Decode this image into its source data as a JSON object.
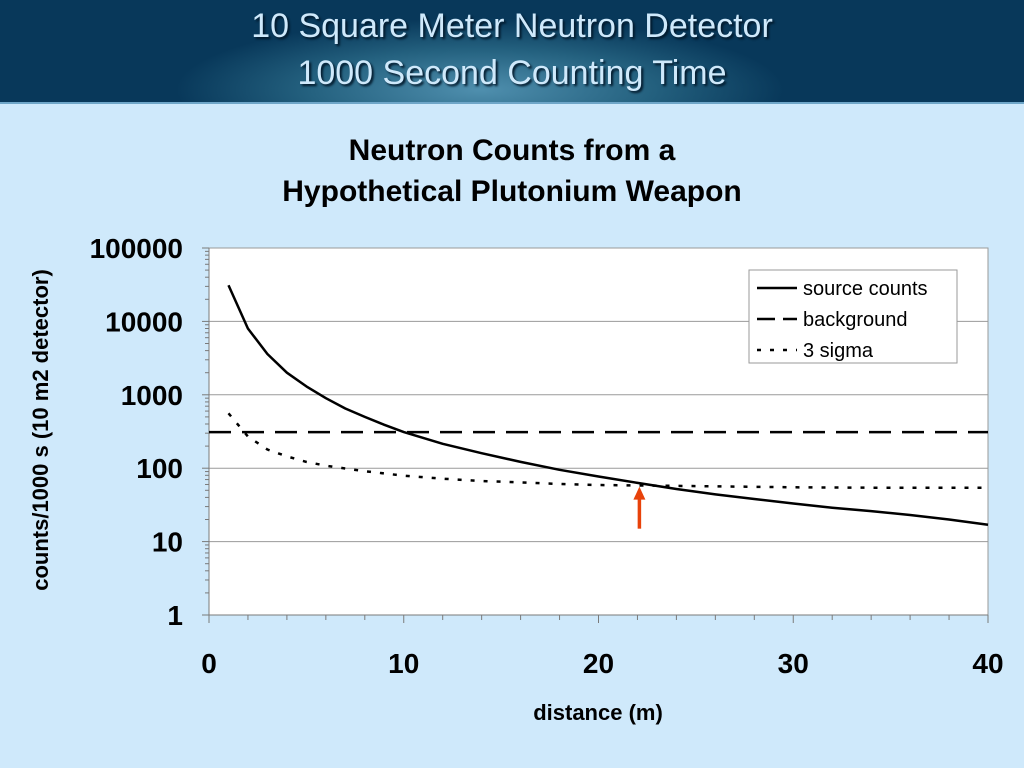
{
  "slide": {
    "title_line1": "10 Square Meter Neutron Detector",
    "title_line2": "1000 Second Counting Time"
  },
  "colors": {
    "banner": "#08385a",
    "slide_background": "#cfe9fb",
    "title_text": "#cfe9fb",
    "plot_background": "#ffffff",
    "series_line": "#000000",
    "arrow": "#e8420a"
  },
  "chart_data": {
    "type": "line",
    "title_line1": "Neutron Counts from a",
    "title_line2": "Hypothetical Plutonium Weapon",
    "xlabel": "distance (m)",
    "ylabel": "counts/1000 s (10 m2 detector)",
    "xlim": [
      0,
      40
    ],
    "ylim": [
      1,
      100000
    ],
    "y_scale": "log",
    "x_ticks": [
      "0",
      "10",
      "20",
      "30",
      "40"
    ],
    "y_ticks": [
      "1",
      "10",
      "100",
      "1000",
      "10000",
      "100000"
    ],
    "grid": "horizontal major gridlines",
    "legend_position": "top-right",
    "legend": [
      "source counts",
      "background",
      "3 sigma"
    ],
    "series": [
      {
        "name": "source counts",
        "style": "solid",
        "x": [
          1,
          2,
          3,
          4,
          5,
          6,
          7,
          8,
          9,
          10,
          12,
          14,
          16,
          18,
          20,
          22,
          24,
          26,
          28,
          30,
          32,
          34,
          36,
          38,
          40
        ],
        "y": [
          31000,
          8000,
          3600,
          2000,
          1300,
          900,
          650,
          500,
          390,
          310,
          215,
          160,
          122,
          95,
          77,
          63,
          52,
          44,
          38,
          33,
          29,
          26,
          23,
          20,
          17
        ]
      },
      {
        "name": "background",
        "style": "long-dash",
        "x": [
          0,
          40
        ],
        "y": [
          310,
          310
        ]
      },
      {
        "name": "3 sigma",
        "style": "dotted",
        "x": [
          1,
          2,
          3,
          4,
          5,
          6,
          7,
          8,
          10,
          12,
          14,
          16,
          18,
          20,
          25,
          30,
          35,
          40
        ],
        "y": [
          560,
          270,
          180,
          145,
          122,
          108,
          99,
          91,
          79,
          72,
          67,
          64,
          61,
          59,
          57,
          55,
          54,
          54
        ]
      }
    ],
    "annotation": {
      "type": "arrow",
      "description": "upward arrow marking the crossover of source counts and 3 sigma",
      "x": 22.1,
      "y_tail": 15,
      "y_head": 56
    }
  }
}
